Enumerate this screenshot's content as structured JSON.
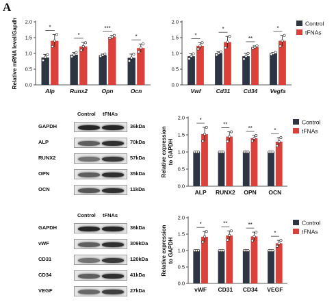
{
  "panel_label": "A",
  "colors": {
    "control": "#2d3542",
    "tfnas": "#d9413a"
  },
  "chart_data": [
    {
      "id": "osteo-mrna",
      "type": "bar",
      "categories": [
        "Alp",
        "Runx2",
        "Opn",
        "Ocn"
      ],
      "categories_italic": true,
      "ylabel": "Relative mRNA level/Gapdh",
      "ylim": [
        0,
        2.0
      ],
      "yticks": [
        "0.0",
        "0.5",
        "1.0",
        "1.5",
        "2.0"
      ],
      "legend": null,
      "series": [
        {
          "values": [
            0.87,
            0.96,
            0.94,
            0.86
          ],
          "errors": [
            0.1,
            0.07,
            0.04,
            0.12
          ],
          "points": [
            [
              0.78,
              0.88,
              0.96
            ],
            [
              0.9,
              0.95,
              1.03
            ],
            [
              0.91,
              0.94,
              0.98
            ],
            [
              0.76,
              0.86,
              0.97
            ]
          ]
        },
        {
          "values": [
            1.4,
            1.22,
            1.52,
            1.17
          ],
          "errors": [
            0.2,
            0.13,
            0.05,
            0.13
          ],
          "points": [
            [
              1.22,
              1.4,
              1.6
            ],
            [
              1.1,
              1.22,
              1.34
            ],
            [
              1.48,
              1.52,
              1.57
            ],
            [
              1.05,
              1.17,
              1.3
            ]
          ]
        }
      ],
      "significance": [
        "*",
        "*",
        "***",
        "*"
      ]
    },
    {
      "id": "angio-mrna",
      "type": "bar",
      "categories": [
        "Vwf",
        "Cd31",
        "Cd34",
        "Vegfa"
      ],
      "categories_italic": true,
      "ylabel": "Relative mRNA level/Gapdh",
      "ylim": [
        0,
        2.0
      ],
      "yticks": [
        "0.0",
        "0.5",
        "1.0",
        "1.5",
        "2.0"
      ],
      "legend": [
        "Control",
        "tFNAs"
      ],
      "series": [
        {
          "values": [
            0.91,
            1.0,
            0.91,
            1.0
          ],
          "errors": [
            0.08,
            0.05,
            0.09,
            0.03
          ],
          "points": [
            [
              0.83,
              0.91,
              0.99
            ],
            [
              0.95,
              1.0,
              1.05
            ],
            [
              0.82,
              0.91,
              1.0
            ],
            [
              0.97,
              1.0,
              1.03
            ]
          ]
        },
        {
          "values": [
            1.24,
            1.36,
            1.2,
            1.4
          ],
          "errors": [
            0.1,
            0.18,
            0.04,
            0.17
          ],
          "points": [
            [
              1.14,
              1.24,
              1.34
            ],
            [
              1.18,
              1.36,
              1.54
            ],
            [
              1.16,
              1.2,
              1.24
            ],
            [
              1.23,
              1.4,
              1.57
            ]
          ]
        }
      ],
      "significance": [
        "*",
        "*",
        "**",
        "*"
      ]
    },
    {
      "id": "osteo-protein",
      "type": "bar",
      "categories": [
        "ALP",
        "RUNX2",
        "OPN",
        "OCN"
      ],
      "categories_italic": false,
      "ylabel": "Relative expression to GAPDH",
      "ylim": [
        0,
        2.0
      ],
      "yticks": [
        "0.0",
        "0.5",
        "1.0",
        "1.5",
        "2.0"
      ],
      "legend": [
        "Control",
        "tFNAs"
      ],
      "series": [
        {
          "values": [
            1.0,
            1.0,
            1.0,
            1.0
          ],
          "errors": [
            0,
            0,
            0,
            0
          ],
          "points": [
            [
              1.0,
              1.0,
              1.0
            ],
            [
              1.0,
              1.0,
              1.0
            ],
            [
              1.0,
              1.0,
              1.0
            ],
            [
              1.0,
              1.0,
              1.0
            ]
          ]
        },
        {
          "values": [
            1.52,
            1.45,
            1.4,
            1.3
          ],
          "errors": [
            0.2,
            0.14,
            0.08,
            0.12
          ],
          "points": [
            [
              1.32,
              1.52,
              1.72
            ],
            [
              1.31,
              1.45,
              1.59
            ],
            [
              1.32,
              1.4,
              1.48
            ],
            [
              1.18,
              1.3,
              1.42
            ]
          ]
        }
      ],
      "significance": [
        "*",
        "**",
        "**",
        "*"
      ]
    },
    {
      "id": "angio-protein",
      "type": "bar",
      "categories": [
        "vWF",
        "CD31",
        "CD34",
        "VEGF"
      ],
      "categories_italic": false,
      "ylabel": "Relative expression to GAPDH",
      "ylim": [
        0,
        2.0
      ],
      "yticks": [
        "0.0",
        "0.5",
        "1.0",
        "1.5",
        "2.0"
      ],
      "legend": [
        "Control",
        "tFNAs"
      ],
      "series": [
        {
          "values": [
            1.0,
            1.0,
            1.0,
            1.0
          ],
          "errors": [
            0,
            0,
            0,
            0
          ],
          "points": [
            [
              1.0,
              1.0,
              1.0
            ],
            [
              1.0,
              1.0,
              1.0
            ],
            [
              1.0,
              1.0,
              1.0
            ],
            [
              1.0,
              1.0,
              1.0
            ]
          ]
        },
        {
          "values": [
            1.42,
            1.46,
            1.43,
            1.22
          ],
          "errors": [
            0.16,
            0.14,
            0.13,
            0.09
          ],
          "points": [
            [
              1.26,
              1.42,
              1.58
            ],
            [
              1.32,
              1.46,
              1.6
            ],
            [
              1.3,
              1.43,
              1.56
            ],
            [
              1.13,
              1.22,
              1.31
            ]
          ]
        }
      ],
      "significance": [
        "*",
        "**",
        "**",
        "*"
      ]
    }
  ],
  "blots": [
    {
      "id": "osteo-blot",
      "header": [
        "Control",
        "tFNAs"
      ],
      "rows": [
        {
          "protein": "GAPDH",
          "kda": "36kDa",
          "bands": [
            0.85,
            0.85
          ]
        },
        {
          "protein": "ALP",
          "kda": "70kDa",
          "bands": [
            0.55,
            0.8
          ]
        },
        {
          "protein": "RUNX2",
          "kda": "57kDa",
          "bands": [
            0.45,
            0.75
          ]
        },
        {
          "protein": "OPN",
          "kda": "35kDa",
          "bands": [
            0.55,
            0.8
          ]
        },
        {
          "protein": "OCN",
          "kda": "11kDa",
          "bands": [
            0.6,
            0.8
          ]
        }
      ]
    },
    {
      "id": "angio-blot",
      "header": [
        "Control",
        "tFNAs"
      ],
      "rows": [
        {
          "protein": "GAPDH",
          "kda": "36kDa",
          "bands": [
            0.85,
            0.85
          ]
        },
        {
          "protein": "vWF",
          "kda": "309kDa",
          "bands": [
            0.55,
            0.8
          ]
        },
        {
          "protein": "CD31",
          "kda": "120kDa",
          "bands": [
            0.45,
            0.75
          ]
        },
        {
          "protein": "CD34",
          "kda": "41kDa",
          "bands": [
            0.55,
            0.8
          ]
        },
        {
          "protein": "VEGF",
          "kda": "27kDa",
          "bands": [
            0.5,
            0.72
          ]
        }
      ]
    }
  ]
}
